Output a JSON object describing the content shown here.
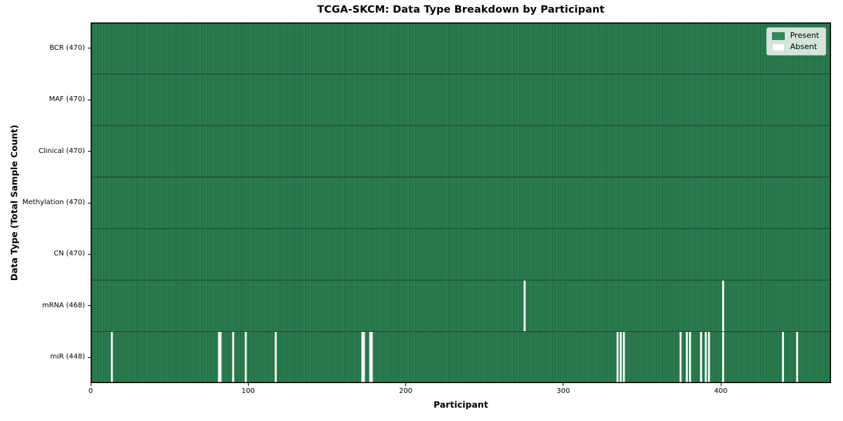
{
  "figure": {
    "title": "TCGA-SKCM: Data Type Breakdown by Participant",
    "xlabel": "Participant",
    "ylabel": "Data Type (Total Sample Count)"
  },
  "legend": {
    "items": [
      {
        "label": "Present",
        "color": "#2e8b57"
      },
      {
        "label": "Absent",
        "color": "#ffffff"
      }
    ]
  },
  "chart_data": {
    "type": "heatmap",
    "title": "TCGA-SKCM: Data Type Breakdown by Participant",
    "xlabel": "Participant",
    "ylabel": "Data Type (Total Sample Count)",
    "n_participants": 470,
    "x_range": [
      0,
      470
    ],
    "x_ticks": [
      0,
      100,
      200,
      300,
      400
    ],
    "grid": false,
    "legend_position": "upper right",
    "rows": [
      {
        "label": "BCR (470)",
        "data_type": "BCR",
        "present_count": 470,
        "absent_participants": []
      },
      {
        "label": "MAF (470)",
        "data_type": "MAF",
        "present_count": 470,
        "absent_participants": []
      },
      {
        "label": "Clinical (470)",
        "data_type": "Clinical",
        "present_count": 470,
        "absent_participants": []
      },
      {
        "label": "Methylation (470)",
        "data_type": "Methylation",
        "present_count": 470,
        "absent_participants": []
      },
      {
        "label": "CN (470)",
        "data_type": "CN",
        "present_count": 470,
        "absent_participants": []
      },
      {
        "label": "mRNA (468)",
        "data_type": "mRNA",
        "present_count": 468,
        "absent_participants": [
          275,
          401
        ]
      },
      {
        "label": "miR (448)",
        "data_type": "miR",
        "present_count": 448,
        "absent_participants": [
          13,
          81,
          82,
          90,
          98,
          117,
          172,
          173,
          177,
          178,
          334,
          336,
          338,
          374,
          378,
          380,
          387,
          390,
          392,
          401,
          439,
          448
        ]
      }
    ],
    "colors": {
      "present": "#2e8b57",
      "absent": "#ffffff",
      "cell_edge": "#1d4732",
      "frame": "#000000"
    }
  }
}
